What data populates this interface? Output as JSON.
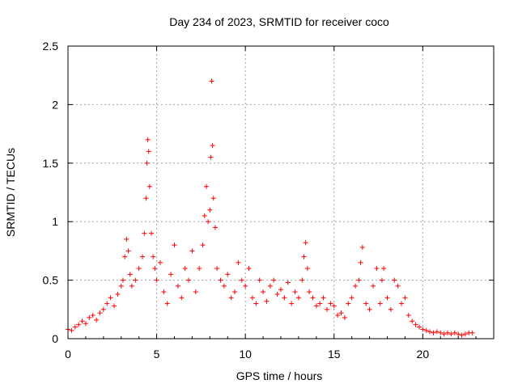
{
  "chart_data": {
    "type": "scatter",
    "title": "Day 234 of 2023, SRMTID for receiver coco",
    "xlabel": "GPS time / hours",
    "ylabel": "SRMTID / TECUs",
    "xlim": [
      0,
      24
    ],
    "ylim": [
      0,
      2.5
    ],
    "x_ticks": [
      0,
      5,
      10,
      15,
      20
    ],
    "x_tick_labels": [
      "0",
      "5",
      "10",
      "15",
      "20"
    ],
    "y_ticks": [
      0,
      0.5,
      1,
      1.5,
      2,
      2.5
    ],
    "y_tick_labels": [
      "0",
      "0.5",
      "1",
      "1.5",
      "2",
      "2.5"
    ],
    "grid": true,
    "marker": "plus",
    "series": [
      {
        "name": "SRMTID",
        "color": "#ff0000",
        "x": [
          0.0,
          0.2,
          0.4,
          0.6,
          0.8,
          1.0,
          1.2,
          1.4,
          1.6,
          1.8,
          2.0,
          2.2,
          2.4,
          2.6,
          2.8,
          3.0,
          3.1,
          3.2,
          3.3,
          3.4,
          3.5,
          3.6,
          3.8,
          4.0,
          4.2,
          4.3,
          4.4,
          4.45,
          4.5,
          4.55,
          4.6,
          4.7,
          4.8,
          4.9,
          5.0,
          5.2,
          5.4,
          5.6,
          5.8,
          6.0,
          6.2,
          6.4,
          6.6,
          6.8,
          7.0,
          7.2,
          7.4,
          7.6,
          7.7,
          7.8,
          7.9,
          8.0,
          8.05,
          8.1,
          8.15,
          8.2,
          8.3,
          8.4,
          8.6,
          8.8,
          9.0,
          9.2,
          9.4,
          9.6,
          9.8,
          10.0,
          10.2,
          10.4,
          10.6,
          10.8,
          11.0,
          11.2,
          11.4,
          11.6,
          11.8,
          12.0,
          12.2,
          12.4,
          12.6,
          12.8,
          13.0,
          13.2,
          13.3,
          13.4,
          13.5,
          13.6,
          13.8,
          14.0,
          14.2,
          14.4,
          14.6,
          14.8,
          15.0,
          15.2,
          15.4,
          15.6,
          15.8,
          16.0,
          16.2,
          16.4,
          16.5,
          16.6,
          16.8,
          17.0,
          17.2,
          17.4,
          17.6,
          17.7,
          17.8,
          18.0,
          18.2,
          18.4,
          18.6,
          18.8,
          19.0,
          19.2,
          19.4,
          19.6,
          19.8,
          20.0,
          20.2,
          20.4,
          20.6,
          20.8,
          21.0,
          21.2,
          21.4,
          21.6,
          21.8,
          22.0,
          22.2,
          22.4,
          22.6,
          22.8
        ],
        "values": [
          0.08,
          0.07,
          0.1,
          0.12,
          0.15,
          0.13,
          0.18,
          0.2,
          0.16,
          0.22,
          0.25,
          0.3,
          0.35,
          0.28,
          0.38,
          0.45,
          0.5,
          0.7,
          0.85,
          0.75,
          0.55,
          0.45,
          0.5,
          0.6,
          0.7,
          0.9,
          1.2,
          1.5,
          1.7,
          1.6,
          1.3,
          0.9,
          0.7,
          0.6,
          0.5,
          0.65,
          0.4,
          0.3,
          0.55,
          0.8,
          0.45,
          0.35,
          0.6,
          0.5,
          0.75,
          0.4,
          0.6,
          0.8,
          1.05,
          1.3,
          1.0,
          1.1,
          1.55,
          2.2,
          1.65,
          1.2,
          0.95,
          0.6,
          0.5,
          0.45,
          0.55,
          0.35,
          0.4,
          0.65,
          0.5,
          0.45,
          0.6,
          0.35,
          0.3,
          0.5,
          0.4,
          0.32,
          0.45,
          0.5,
          0.38,
          0.42,
          0.35,
          0.48,
          0.3,
          0.4,
          0.35,
          0.5,
          0.7,
          0.82,
          0.6,
          0.4,
          0.35,
          0.28,
          0.3,
          0.35,
          0.25,
          0.3,
          0.28,
          0.2,
          0.22,
          0.18,
          0.3,
          0.35,
          0.45,
          0.5,
          0.65,
          0.78,
          0.3,
          0.25,
          0.45,
          0.6,
          0.3,
          0.5,
          0.6,
          0.35,
          0.25,
          0.5,
          0.45,
          0.3,
          0.35,
          0.2,
          0.15,
          0.12,
          0.1,
          0.08,
          0.07,
          0.06,
          0.05,
          0.06,
          0.05,
          0.04,
          0.05,
          0.04,
          0.05,
          0.04,
          0.03,
          0.04,
          0.05,
          0.05
        ]
      }
    ]
  }
}
